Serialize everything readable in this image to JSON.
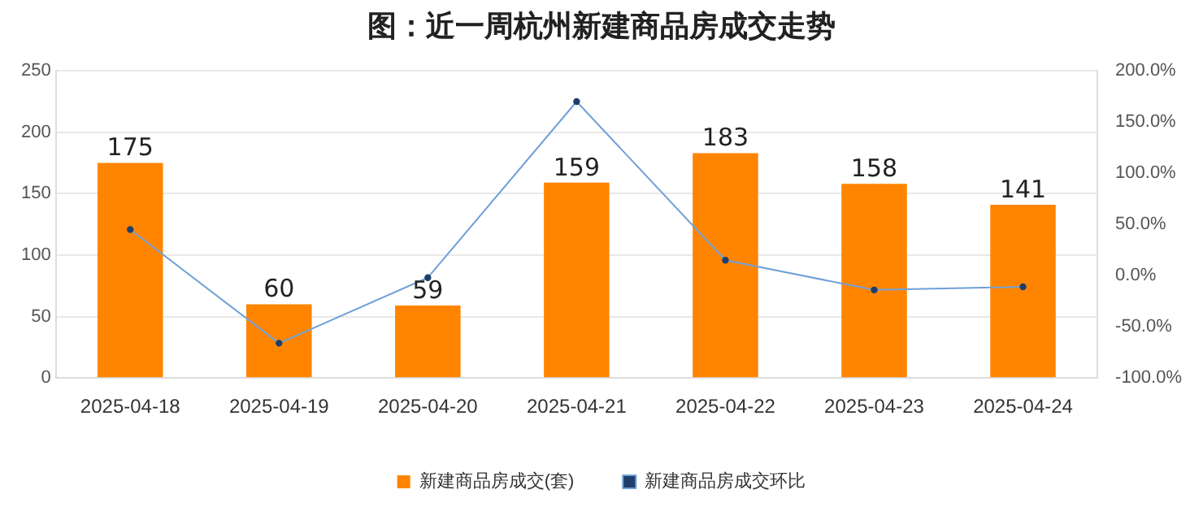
{
  "chart_data": {
    "type": "bar",
    "title": "图：近一周杭州新建商品房成交走势",
    "categories": [
      "2025-04-18",
      "2025-04-19",
      "2025-04-20",
      "2025-04-21",
      "2025-04-22",
      "2025-04-23",
      "2025-04-24"
    ],
    "series": [
      {
        "name": "新建商品房成交(套)",
        "color": "#ff8500",
        "values": [
          175,
          60,
          59,
          159,
          183,
          158,
          141
        ],
        "data_labels": true
      },
      {
        "name": "新建商品房成交环比",
        "type": "line",
        "axis": "y2",
        "color": "#6fa0d8",
        "values": [
          45,
          -66,
          -2,
          170,
          15,
          -14,
          -11
        ]
      }
    ],
    "ylim": [
      0,
      250
    ],
    "yticks": [
      0,
      50,
      100,
      150,
      200,
      250
    ],
    "y2lim": [
      -100,
      200
    ],
    "y2ticks": [
      {
        "value": -100,
        "label": "-100.0%"
      },
      {
        "value": -50,
        "label": "-50.0%"
      },
      {
        "value": 0,
        "label": "0.0%"
      },
      {
        "value": 50,
        "label": "50.0%"
      },
      {
        "value": 100,
        "label": "100.0%"
      },
      {
        "value": 150,
        "label": "150.0%"
      },
      {
        "value": 200,
        "label": "200.0%"
      }
    ],
    "grid": "y",
    "legend": "bottom",
    "marker": "circle"
  }
}
